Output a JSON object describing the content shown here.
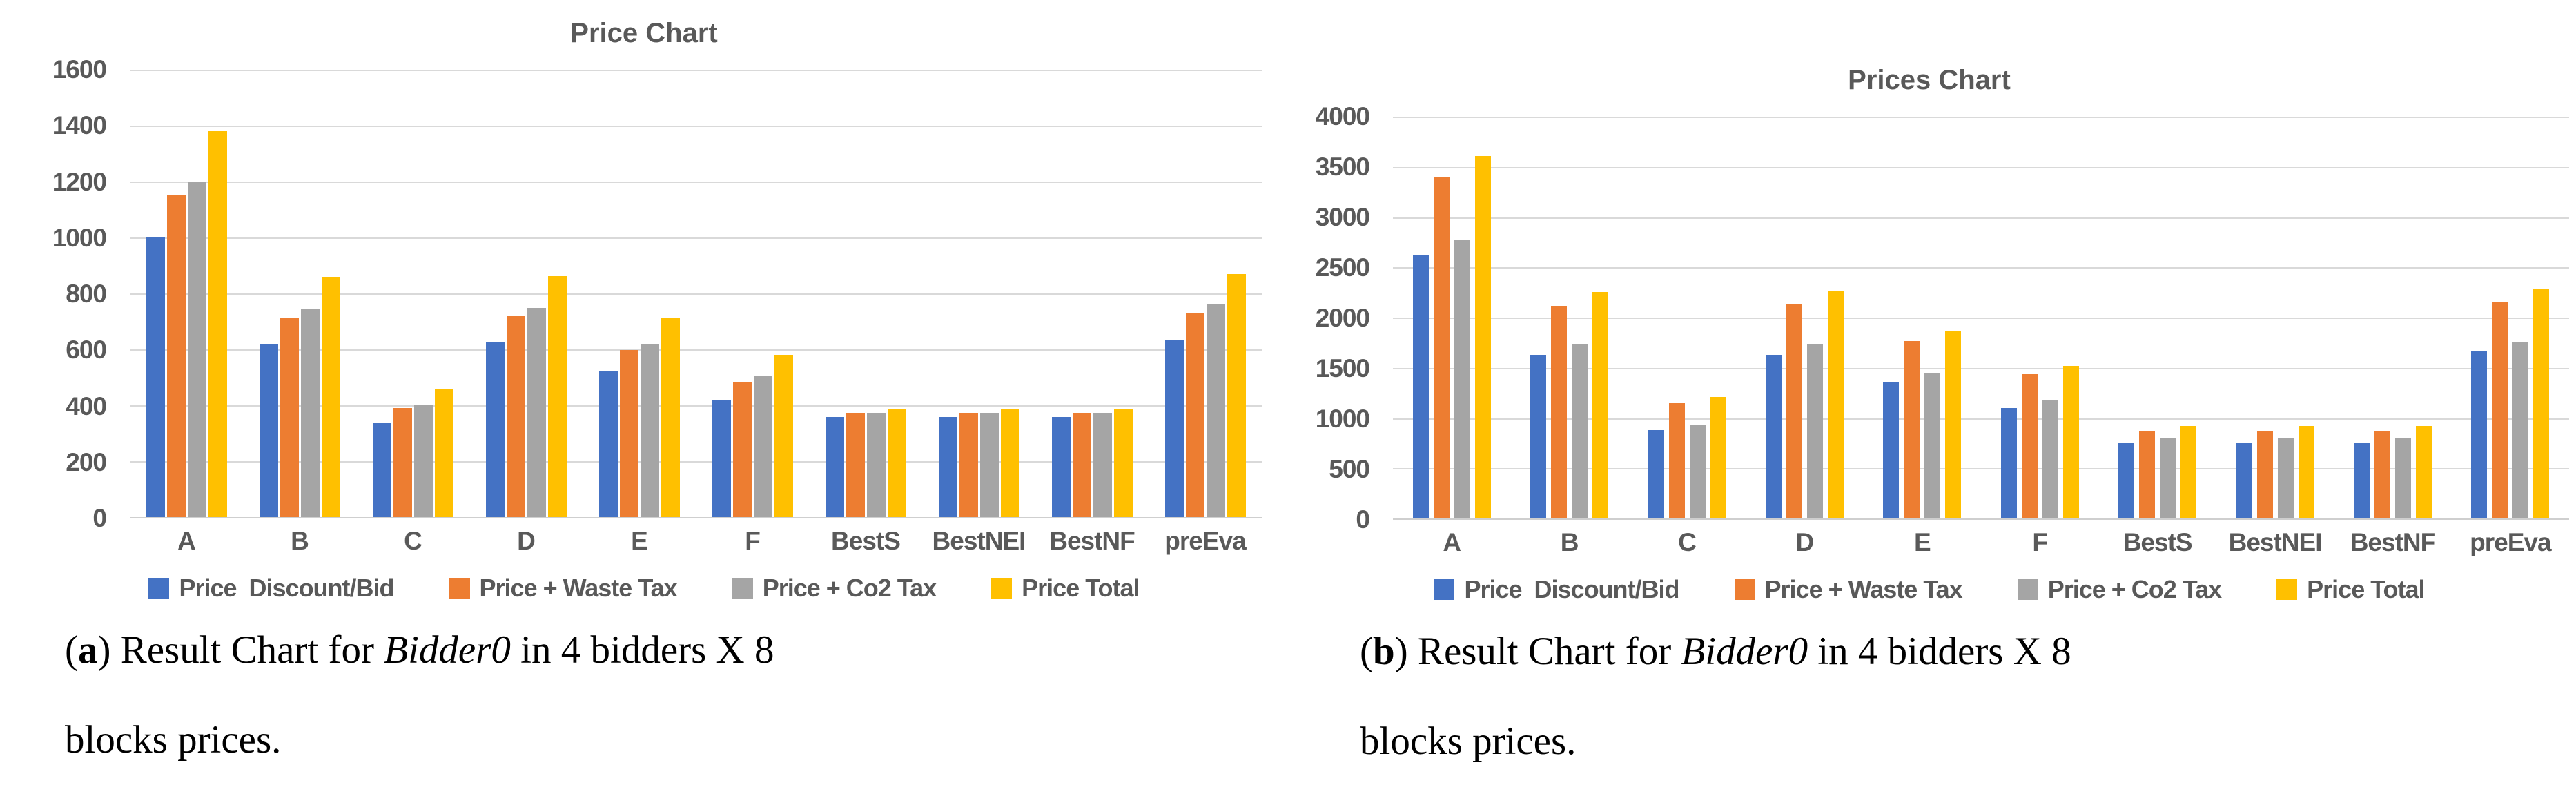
{
  "chart_data": [
    {
      "type": "bar",
      "title": "Price Chart",
      "categories": [
        "A",
        "B",
        "C",
        "D",
        "E",
        "F",
        "BestS",
        "BestNEI",
        "BestNF",
        "preEva"
      ],
      "series": [
        {
          "name": "Price  Discount/Bid",
          "color": "#4472C4",
          "values": [
            1000,
            620,
            335,
            625,
            520,
            420,
            358,
            358,
            358,
            635
          ]
        },
        {
          "name": "Price + Waste Tax",
          "color": "#ED7D31",
          "values": [
            1150,
            713,
            390,
            718,
            597,
            483,
            372,
            372,
            372,
            732
          ]
        },
        {
          "name": "Price + Co2 Tax",
          "color": "#A5A5A5",
          "values": [
            1200,
            745,
            400,
            748,
            620,
            505,
            372,
            372,
            373,
            762
          ]
        },
        {
          "name": "Price Total",
          "color": "#FFC000",
          "values": [
            1380,
            860,
            460,
            862,
            712,
            580,
            388,
            388,
            388,
            870
          ]
        }
      ],
      "ylim": [
        0,
        1600
      ],
      "y_step": 200,
      "y_ticks": [
        "1600",
        "1400",
        "1200",
        "1000",
        "800",
        "600",
        "400",
        "200",
        "0"
      ],
      "grid": true,
      "legend_position": "bottom",
      "xlabel": "",
      "ylabel": "",
      "caption": {
        "open": "(",
        "letter": "a",
        "after": ") Result Chart for ",
        "italic": "Bidder0",
        "line1_rest": " in 4 bidders X 8",
        "line2": "blocks prices."
      }
    },
    {
      "type": "bar",
      "title": "Prices Chart",
      "categories": [
        "A",
        "B",
        "C",
        "D",
        "E",
        "F",
        "BestS",
        "BestNEI",
        "BestNF",
        "preEva"
      ],
      "series": [
        {
          "name": "Price  Discount/Bid",
          "color": "#4472C4",
          "values": [
            2620,
            1630,
            880,
            1630,
            1360,
            1100,
            750,
            750,
            750,
            1665
          ]
        },
        {
          "name": "Price + Waste Tax",
          "color": "#ED7D31",
          "values": [
            3400,
            2120,
            1145,
            2130,
            1765,
            1435,
            872,
            872,
            872,
            2155
          ]
        },
        {
          "name": "Price + Co2 Tax",
          "color": "#A5A5A5",
          "values": [
            2780,
            1730,
            925,
            1740,
            1445,
            1175,
            800,
            800,
            800,
            1755
          ]
        },
        {
          "name": "Price Total",
          "color": "#FFC000",
          "values": [
            3610,
            2255,
            1210,
            2260,
            1865,
            1520,
            920,
            920,
            920,
            2290
          ]
        }
      ],
      "ylim": [
        0,
        4000
      ],
      "y_step": 500,
      "y_ticks": [
        "4000",
        "3500",
        "3000",
        "2500",
        "2000",
        "1500",
        "1000",
        "500",
        "0"
      ],
      "grid": true,
      "legend_position": "bottom",
      "xlabel": "",
      "ylabel": "",
      "caption": {
        "open": "(",
        "letter": "b",
        "after": ") Result Chart for ",
        "italic": "Bidder0",
        "line1_rest": " in 4 bidders X 8",
        "line2": "blocks prices."
      }
    }
  ]
}
